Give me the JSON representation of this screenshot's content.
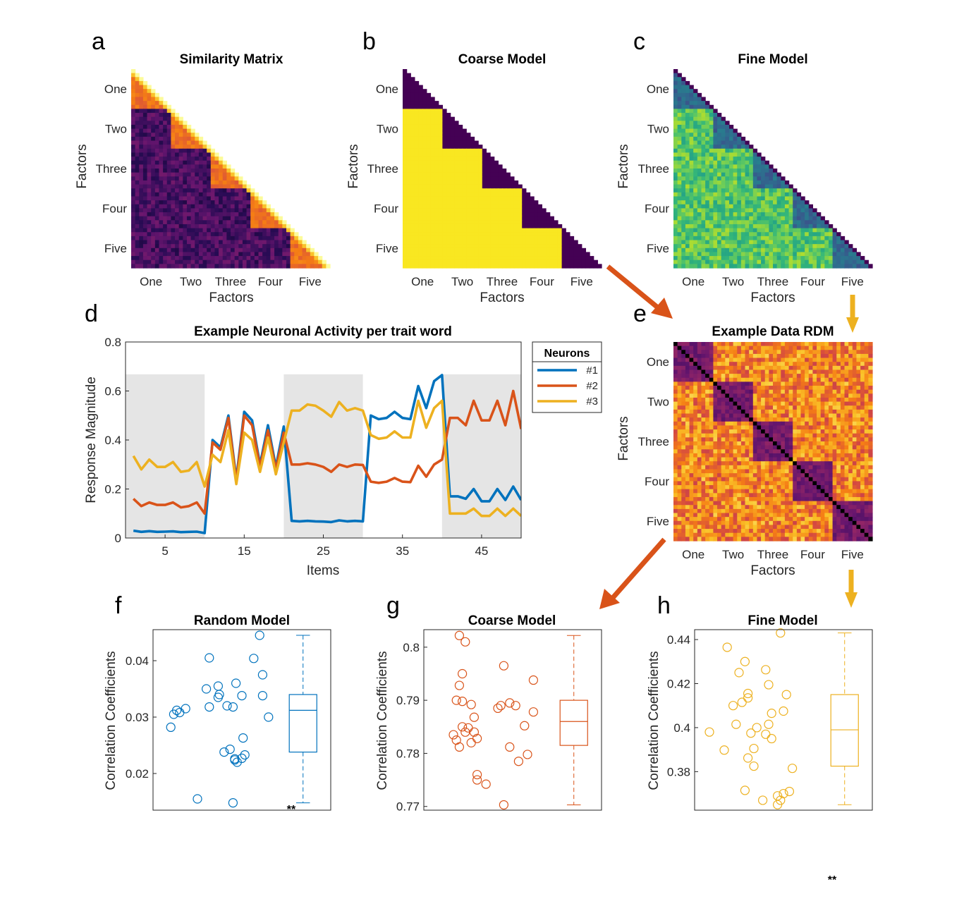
{
  "panels": {
    "a": {
      "letter": "a",
      "title": "Similarity Matrix",
      "xlabel": "Factors",
      "ylabel": "Factors"
    },
    "b": {
      "letter": "b",
      "title": "Coarse Model",
      "xlabel": "Factors",
      "ylabel": "Factors"
    },
    "c": {
      "letter": "c",
      "title": "Fine Model",
      "xlabel": "Factors",
      "ylabel": "Factors"
    },
    "d": {
      "letter": "d"
    },
    "e": {
      "letter": "e",
      "title": "Example Data RDM",
      "xlabel": "Factors",
      "ylabel": "Factors"
    },
    "f": {
      "letter": "f"
    },
    "g": {
      "letter": "g"
    },
    "h": {
      "letter": "h"
    }
  },
  "factor_labels": [
    "One",
    "Two",
    "Three",
    "Four",
    "Five"
  ],
  "colors": {
    "blue": "#0072bd",
    "orange": "#d95319",
    "yellow": "#edb120",
    "shade": "#e5e5e5"
  },
  "stray_mark": "**",
  "chart_data": [
    {
      "id": "d",
      "type": "line",
      "title": "Example Neuronal Activity per trait word",
      "xlabel": "Items",
      "ylabel": "Response Magnitude",
      "xlim": [
        0,
        50
      ],
      "ylim": [
        0,
        0.8
      ],
      "xticks": [
        5,
        15,
        25,
        35,
        45
      ],
      "yticks": [
        0,
        0.2,
        0.4,
        0.6,
        0.8
      ],
      "shaded_ranges": [
        [
          0,
          10
        ],
        [
          20,
          30
        ],
        [
          40,
          50
        ]
      ],
      "legend": {
        "title": "Neurons",
        "position": "outside-top-right"
      },
      "x": [
        1,
        2,
        3,
        4,
        5,
        6,
        7,
        8,
        9,
        10,
        11,
        12,
        13,
        14,
        15,
        16,
        17,
        18,
        19,
        20,
        21,
        22,
        23,
        24,
        25,
        26,
        27,
        28,
        29,
        30,
        31,
        32,
        33,
        34,
        35,
        36,
        37,
        38,
        39,
        40,
        41,
        42,
        43,
        44,
        45,
        46,
        47,
        48,
        49,
        50
      ],
      "series": [
        {
          "name": "#1",
          "color": "#0072bd",
          "values": [
            0.03,
            0.025,
            0.028,
            0.025,
            0.026,
            0.027,
            0.024,
            0.025,
            0.026,
            0.02,
            0.4,
            0.37,
            0.5,
            0.24,
            0.515,
            0.48,
            0.3,
            0.46,
            0.29,
            0.455,
            0.07,
            0.068,
            0.07,
            0.068,
            0.067,
            0.065,
            0.072,
            0.068,
            0.07,
            0.068,
            0.5,
            0.485,
            0.49,
            0.515,
            0.49,
            0.485,
            0.62,
            0.53,
            0.64,
            0.665,
            0.17,
            0.17,
            0.16,
            0.2,
            0.15,
            0.15,
            0.2,
            0.155,
            0.21,
            0.155
          ]
        },
        {
          "name": "#2",
          "color": "#d95319",
          "values": [
            0.16,
            0.13,
            0.145,
            0.135,
            0.135,
            0.145,
            0.125,
            0.13,
            0.145,
            0.1,
            0.39,
            0.36,
            0.49,
            0.23,
            0.5,
            0.46,
            0.29,
            0.44,
            0.28,
            0.43,
            0.3,
            0.3,
            0.305,
            0.3,
            0.29,
            0.27,
            0.3,
            0.29,
            0.3,
            0.298,
            0.23,
            0.225,
            0.23,
            0.245,
            0.23,
            0.228,
            0.295,
            0.25,
            0.3,
            0.32,
            0.49,
            0.49,
            0.46,
            0.56,
            0.48,
            0.48,
            0.56,
            0.46,
            0.6,
            0.445
          ]
        },
        {
          "name": "#3",
          "color": "#edb120",
          "values": [
            0.335,
            0.28,
            0.32,
            0.29,
            0.29,
            0.31,
            0.27,
            0.275,
            0.31,
            0.21,
            0.34,
            0.31,
            0.44,
            0.22,
            0.43,
            0.4,
            0.27,
            0.41,
            0.26,
            0.39,
            0.52,
            0.52,
            0.545,
            0.54,
            0.52,
            0.495,
            0.555,
            0.52,
            0.53,
            0.52,
            0.42,
            0.405,
            0.41,
            0.435,
            0.41,
            0.41,
            0.56,
            0.45,
            0.53,
            0.56,
            0.1,
            0.1,
            0.1,
            0.12,
            0.09,
            0.09,
            0.12,
            0.09,
            0.12,
            0.09
          ]
        }
      ]
    },
    {
      "id": "f",
      "type": "scatter",
      "title": "Random Model",
      "ylabel": "Correlation Coefficients",
      "ylim": [
        0.0135,
        0.0455
      ],
      "yticks": [
        0.02,
        0.03,
        0.04
      ],
      "ytick_labels": [
        "0.02",
        "0.03",
        "0.04"
      ],
      "color": "#0072bd",
      "annotation": "**",
      "points": [
        [
          0.3,
          0.0282
        ],
        [
          0.35,
          0.0305
        ],
        [
          0.45,
          0.0308
        ],
        [
          0.55,
          0.0315
        ],
        [
          0.4,
          0.0312
        ],
        [
          0.75,
          0.0155
        ],
        [
          0.95,
          0.0405
        ],
        [
          0.9,
          0.035
        ],
        [
          0.95,
          0.0318
        ],
        [
          1.1,
          0.0355
        ],
        [
          1.1,
          0.0335
        ],
        [
          1.12,
          0.034
        ],
        [
          1.25,
          0.032
        ],
        [
          1.4,
          0.036
        ],
        [
          1.35,
          0.0318
        ],
        [
          1.5,
          0.0338
        ],
        [
          1.2,
          0.0238
        ],
        [
          1.3,
          0.0243
        ],
        [
          1.38,
          0.0226
        ],
        [
          1.42,
          0.022
        ],
        [
          1.38,
          0.0224
        ],
        [
          1.5,
          0.0227
        ],
        [
          1.55,
          0.0233
        ],
        [
          1.52,
          0.0263
        ],
        [
          1.35,
          0.0148
        ],
        [
          1.7,
          0.0404
        ],
        [
          1.8,
          0.0445
        ],
        [
          1.85,
          0.0375
        ],
        [
          1.85,
          0.0338
        ],
        [
          1.95,
          0.03
        ]
      ],
      "box": {
        "min": 0.0148,
        "q1": 0.0238,
        "median": 0.0312,
        "q3": 0.034,
        "max": 0.0445
      }
    },
    {
      "id": "g",
      "type": "scatter",
      "title": "Coarse Model",
      "ylabel": "Correlation Coefficients",
      "ylim": [
        0.7693,
        0.8033
      ],
      "yticks": [
        0.77,
        0.78,
        0.79,
        0.8
      ],
      "ytick_labels": [
        "0.77",
        "0.78",
        "0.79",
        "0.8"
      ],
      "color": "#d95319",
      "points": [
        [
          0.6,
          0.8022
        ],
        [
          0.7,
          0.801
        ],
        [
          0.65,
          0.795
        ],
        [
          0.6,
          0.7928
        ],
        [
          0.55,
          0.79
        ],
        [
          0.65,
          0.7898
        ],
        [
          0.8,
          0.7892
        ],
        [
          0.85,
          0.7868
        ],
        [
          0.75,
          0.7848
        ],
        [
          0.65,
          0.785
        ],
        [
          0.7,
          0.784
        ],
        [
          0.85,
          0.784
        ],
        [
          0.9,
          0.7828
        ],
        [
          0.5,
          0.7835
        ],
        [
          0.55,
          0.7825
        ],
        [
          0.6,
          0.7812
        ],
        [
          0.8,
          0.782
        ],
        [
          0.9,
          0.776
        ],
        [
          0.9,
          0.775
        ],
        [
          1.05,
          0.7742
        ],
        [
          1.25,
          0.7885
        ],
        [
          1.3,
          0.789
        ],
        [
          1.35,
          0.7965
        ],
        [
          1.45,
          0.7895
        ],
        [
          1.55,
          0.789
        ],
        [
          1.45,
          0.7812
        ],
        [
          1.6,
          0.7785
        ],
        [
          1.7,
          0.7852
        ],
        [
          1.75,
          0.7798
        ],
        [
          1.85,
          0.7938
        ],
        [
          1.85,
          0.7878
        ],
        [
          1.35,
          0.7703
        ]
      ],
      "box": {
        "min": 0.7703,
        "q1": 0.7815,
        "median": 0.786,
        "q3": 0.79,
        "max": 0.8022
      }
    },
    {
      "id": "h",
      "type": "scatter",
      "title": "Fine Model",
      "ylabel": "Correlation Coefficients",
      "ylim": [
        0.3625,
        0.4445
      ],
      "yticks": [
        0.38,
        0.4,
        0.42,
        0.44
      ],
      "ytick_labels": [
        "0.38",
        "0.4",
        "0.42",
        "0.44"
      ],
      "color": "#edb120",
      "points": [
        [
          0.55,
          0.4365
        ],
        [
          0.25,
          0.398
        ],
        [
          0.5,
          0.3898
        ],
        [
          0.65,
          0.41
        ],
        [
          0.75,
          0.425
        ],
        [
          0.8,
          0.4115
        ],
        [
          0.9,
          0.4135
        ],
        [
          0.85,
          0.43
        ],
        [
          0.9,
          0.4155
        ],
        [
          0.7,
          0.4015
        ],
        [
          0.95,
          0.3975
        ],
        [
          1.05,
          0.4
        ],
        [
          1.0,
          0.3905
        ],
        [
          0.9,
          0.3862
        ],
        [
          1.0,
          0.3825
        ],
        [
          0.85,
          0.3715
        ],
        [
          1.2,
          0.4263
        ],
        [
          1.25,
          0.4195
        ],
        [
          1.25,
          0.4015
        ],
        [
          1.3,
          0.4065
        ],
        [
          1.3,
          0.395
        ],
        [
          1.2,
          0.397
        ],
        [
          1.15,
          0.367
        ],
        [
          1.45,
          0.443
        ],
        [
          1.55,
          0.415
        ],
        [
          1.5,
          0.4075
        ],
        [
          1.4,
          0.369
        ],
        [
          1.45,
          0.367
        ],
        [
          1.5,
          0.37
        ],
        [
          1.6,
          0.371
        ],
        [
          1.65,
          0.3815
        ],
        [
          1.4,
          0.365
        ]
      ],
      "box": {
        "min": 0.365,
        "q1": 0.3825,
        "median": 0.399,
        "q3": 0.415,
        "max": 0.443
      }
    }
  ]
}
